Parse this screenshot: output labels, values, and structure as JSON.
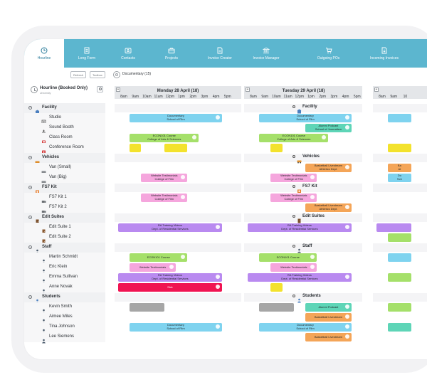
{
  "nav": [
    {
      "label": "Hourline",
      "icon": "clock-icon",
      "active": true
    },
    {
      "label": "Long Form",
      "icon": "document-list-icon",
      "active": false
    },
    {
      "label": "Contacts",
      "icon": "contact-card-icon",
      "active": false
    },
    {
      "label": "Projects",
      "icon": "briefcase-icon",
      "active": false
    },
    {
      "label": "Invoice Creator",
      "icon": "invoice-icon",
      "active": false
    },
    {
      "label": "Invoice Manager",
      "icon": "bank-icon",
      "active": false
    },
    {
      "label": "Outgoing POs",
      "icon": "cart-icon",
      "active": false
    },
    {
      "label": "Incoming Invoices",
      "icon": "incoming-invoice-icon",
      "active": false
    }
  ],
  "toolbar": {
    "refresh_label": "Refresh",
    "toolbox_label": "Toolbox",
    "title": "Documentary (15)"
  },
  "sidebar_header": {
    "title": "Hourline (Booked Only)",
    "subtitle": "University"
  },
  "days": [
    {
      "title": "Monday 28 April (18)",
      "hours": [
        "8am",
        "9am",
        "10am",
        "11am",
        "12pm",
        "1pm",
        "2pm",
        "3pm",
        "4pm",
        "5pm"
      ]
    },
    {
      "title": "Tuesday 29 April (18)",
      "hours": [
        "8am",
        "9am",
        "10am",
        "11am",
        "12pm",
        "1pm",
        "2pm",
        "3pm",
        "4pm",
        "5pm"
      ]
    },
    {
      "title": "",
      "hours": [
        "8am",
        "9am",
        "10"
      ]
    }
  ],
  "colors": {
    "blue": "#7fd3ef",
    "green": "#a5e06a",
    "yellow": "#f3e22d",
    "pink": "#f5a6dd",
    "purple": "#b98af0",
    "orange": "#f4a558",
    "red": "#f01452",
    "gray": "#a6a6a6",
    "teal": "#5ed5b7",
    "nav": "#5cb6cf"
  },
  "rows": [
    {
      "type": "cat",
      "name": "Facility",
      "icon": "building-icon"
    },
    {
      "type": "item",
      "name": "Studio",
      "icon": "studio-icon"
    },
    {
      "type": "item",
      "name": "Sound Booth",
      "icon": "microphone-icon"
    },
    {
      "type": "item",
      "name": "Class Room",
      "icon": "classroom-icon"
    },
    {
      "type": "item",
      "name": "Conference Room",
      "icon": "conference-icon"
    },
    {
      "type": "cat",
      "name": "Vehicles",
      "icon": "vehicle-icon"
    },
    {
      "type": "item",
      "name": "Van (Small)",
      "icon": "van-icon"
    },
    {
      "type": "item",
      "name": "Van (Big)",
      "icon": "van-icon"
    },
    {
      "type": "cat",
      "name": "FS7 Kit",
      "icon": "kit-icon"
    },
    {
      "type": "item",
      "name": "FS7 Kit 1",
      "icon": "camera-icon"
    },
    {
      "type": "item",
      "name": "FS7 Kit 2",
      "icon": "camera-icon"
    },
    {
      "type": "cat",
      "name": "Edit Suites",
      "icon": "edit-suite-icon"
    },
    {
      "type": "item",
      "name": "Edit Suite 1",
      "icon": "door-icon"
    },
    {
      "type": "item",
      "name": "Edit Suite 2",
      "icon": "door-icon"
    },
    {
      "type": "cat",
      "name": "Staff",
      "icon": "person-icon"
    },
    {
      "type": "item",
      "name": "Martin Schmidt",
      "icon": "person-icon"
    },
    {
      "type": "item",
      "name": "Eric Klein",
      "icon": "person-icon"
    },
    {
      "type": "item",
      "name": "Emma Sullivan",
      "icon": "person-icon"
    },
    {
      "type": "item",
      "name": "Anne Novak",
      "icon": "person-icon"
    },
    {
      "type": "cat",
      "name": "Students",
      "icon": "students-icon"
    },
    {
      "type": "item",
      "name": "Kevin Smith",
      "icon": "person-icon"
    },
    {
      "type": "item",
      "name": "Aimee Miles",
      "icon": "person-icon"
    },
    {
      "type": "item",
      "name": "Tina Johnson",
      "icon": "person-icon"
    },
    {
      "type": "item",
      "name": "Lee Siemens",
      "icon": "person-icon"
    }
  ],
  "day2_markers": [
    {
      "row": 0,
      "name": "Facility"
    },
    {
      "row": 5,
      "name": "Vehicles"
    },
    {
      "row": 8,
      "name": "FS7 Kit"
    },
    {
      "row": 11,
      "name": "Edit Suites"
    },
    {
      "row": 14,
      "name": "Staff"
    },
    {
      "row": 19,
      "name": "Students"
    }
  ],
  "events": [
    {
      "day": 0,
      "row": 1,
      "start": 1.0,
      "end": 9.0,
      "color": "blue",
      "lines": [
        "Documentary",
        "School of Film"
      ]
    },
    {
      "day": 0,
      "row": 3,
      "start": 1.0,
      "end": 7.0,
      "color": "green",
      "lines": [
        "ECON101 Course",
        "College of Arts & Sciences"
      ]
    },
    {
      "day": 0,
      "row": 4,
      "start": 1.0,
      "end": 2.0,
      "color": "yellow",
      "lines": []
    },
    {
      "day": 0,
      "row": 4,
      "start": 4.0,
      "end": 6.0,
      "color": "yellow",
      "lines": []
    },
    {
      "day": 0,
      "row": 7,
      "start": 2.0,
      "end": 6.0,
      "color": "pink",
      "lines": [
        "Website Testimonials",
        "College of Film"
      ]
    },
    {
      "day": 0,
      "row": 9,
      "start": 2.0,
      "end": 6.0,
      "color": "pink",
      "lines": [
        "Website Testimonials",
        "College of Film"
      ]
    },
    {
      "day": 0,
      "row": 12,
      "start": 0.0,
      "end": 9.0,
      "color": "purple",
      "lines": [
        "RA Training Videos",
        "Dept. of Residential Services"
      ]
    },
    {
      "day": 0,
      "row": 15,
      "start": 1.0,
      "end": 6.0,
      "color": "green",
      "lines": [
        "ECON101 Course"
      ]
    },
    {
      "day": 0,
      "row": 16,
      "start": 1.0,
      "end": 5.0,
      "color": "pink",
      "lines": [
        "Website Testimonials"
      ]
    },
    {
      "day": 0,
      "row": 17,
      "start": 0.0,
      "end": 9.0,
      "color": "purple",
      "lines": [
        "RA Training Videos",
        "Dept. of Residential Services"
      ]
    },
    {
      "day": 0,
      "row": 18,
      "start": 0.0,
      "end": 9.0,
      "color": "red",
      "lines": [
        "Sick"
      ]
    },
    {
      "day": 0,
      "row": 20,
      "start": 1.0,
      "end": 4.0,
      "color": "gray",
      "lines": []
    },
    {
      "day": 0,
      "row": 22,
      "start": 1.0,
      "end": 9.0,
      "color": "blue",
      "lines": [
        "Documentary",
        "School of Film"
      ]
    },
    {
      "day": 1,
      "row": 1,
      "start": 1.0,
      "end": 9.0,
      "color": "blue",
      "lines": [
        "Documentary",
        "School of Film"
      ]
    },
    {
      "day": 1,
      "row": 2,
      "start": 5.0,
      "end": 9.0,
      "color": "teal",
      "lines": [
        "Alumni Podcast",
        "School of Journalism"
      ]
    },
    {
      "day": 1,
      "row": 3,
      "start": 1.0,
      "end": 7.0,
      "color": "green",
      "lines": [
        "ECON101 Course",
        "College of Arts & Sciences"
      ]
    },
    {
      "day": 1,
      "row": 4,
      "start": 2.0,
      "end": 3.0,
      "color": "yellow",
      "lines": []
    },
    {
      "day": 1,
      "row": 6,
      "start": 5.0,
      "end": 9.0,
      "color": "orange",
      "lines": [
        "Basketball Livestream",
        "Athletics Dept."
      ]
    },
    {
      "day": 1,
      "row": 7,
      "start": 2.0,
      "end": 6.0,
      "color": "pink",
      "lines": [
        "Website Testimonials",
        "College of Film"
      ]
    },
    {
      "day": 1,
      "row": 9,
      "start": 2.0,
      "end": 6.0,
      "color": "pink",
      "lines": [
        "Website Testimonials",
        "College of Film"
      ]
    },
    {
      "day": 1,
      "row": 10,
      "start": 5.0,
      "end": 9.0,
      "color": "orange",
      "lines": [
        "Basketball Livestream",
        "Athletics Dept."
      ]
    },
    {
      "day": 1,
      "row": 12,
      "start": 0.0,
      "end": 9.0,
      "color": "purple",
      "lines": [
        "RA Training Videos",
        "Dept. of Residential Services"
      ]
    },
    {
      "day": 1,
      "row": 15,
      "start": 1.0,
      "end": 6.0,
      "color": "green",
      "lines": [
        "ECON101 Course"
      ]
    },
    {
      "day": 1,
      "row": 16,
      "start": 2.0,
      "end": 6.0,
      "color": "pink",
      "lines": [
        "Website Testimonials"
      ]
    },
    {
      "day": 1,
      "row": 17,
      "start": 0.0,
      "end": 9.0,
      "color": "purple",
      "lines": [
        "RA Training Videos",
        "Dept. of Residential Services"
      ]
    },
    {
      "day": 1,
      "row": 18,
      "start": 2.0,
      "end": 3.0,
      "color": "yellow",
      "lines": []
    },
    {
      "day": 1,
      "row": 20,
      "start": 1.0,
      "end": 4.0,
      "color": "gray",
      "lines": []
    },
    {
      "day": 1,
      "row": 20,
      "start": 5.0,
      "end": 9.0,
      "color": "teal",
      "lines": [
        "Alumni Podcast"
      ]
    },
    {
      "day": 1,
      "row": 21,
      "start": 5.0,
      "end": 9.0,
      "color": "orange",
      "lines": [
        "Basketball Livestream"
      ]
    },
    {
      "day": 1,
      "row": 22,
      "start": 1.0,
      "end": 9.0,
      "color": "blue",
      "lines": [
        "Documentary",
        "School of Film"
      ]
    },
    {
      "day": 1,
      "row": 23,
      "start": 5.0,
      "end": 9.0,
      "color": "orange",
      "lines": [
        "Basketball Livestream"
      ]
    },
    {
      "day": 2,
      "row": 1,
      "start": 1.0,
      "end": 3.0,
      "color": "blue",
      "lines": []
    },
    {
      "day": 2,
      "row": 4,
      "start": 1.0,
      "end": 3.0,
      "color": "yellow",
      "lines": []
    },
    {
      "day": 2,
      "row": 6,
      "start": 1.0,
      "end": 3.0,
      "color": "orange",
      "lines": [
        "Ba",
        "At"
      ]
    },
    {
      "day": 2,
      "row": 7,
      "start": 1.0,
      "end": 3.0,
      "color": "blue",
      "lines": [
        "Do",
        "Sch"
      ]
    },
    {
      "day": 2,
      "row": 12,
      "start": 0.0,
      "end": 3.0,
      "color": "purple",
      "lines": []
    },
    {
      "day": 2,
      "row": 13,
      "start": 1.0,
      "end": 3.0,
      "color": "green",
      "lines": []
    },
    {
      "day": 2,
      "row": 15,
      "start": 1.0,
      "end": 3.0,
      "color": "blue",
      "lines": []
    },
    {
      "day": 2,
      "row": 17,
      "start": 1.0,
      "end": 3.0,
      "color": "green",
      "lines": []
    },
    {
      "day": 2,
      "row": 20,
      "start": 1.0,
      "end": 3.0,
      "color": "green",
      "lines": []
    },
    {
      "day": 2,
      "row": 22,
      "start": 1.0,
      "end": 3.0,
      "color": "teal",
      "lines": []
    }
  ]
}
